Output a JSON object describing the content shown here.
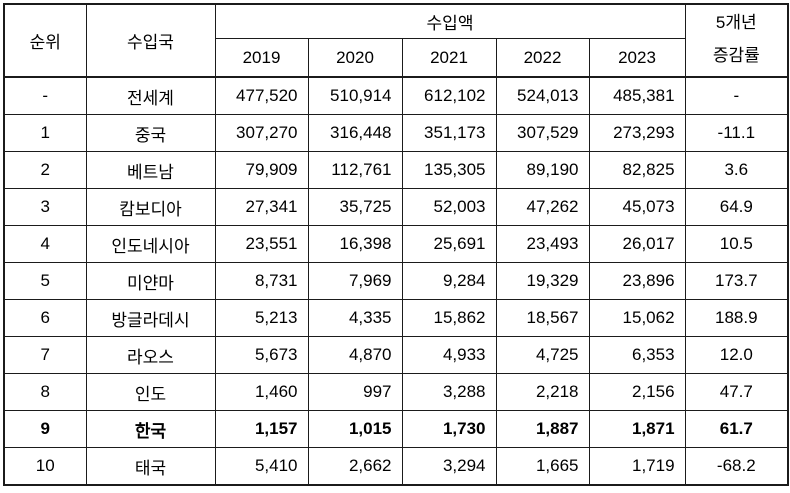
{
  "table": {
    "header": {
      "rank": "순위",
      "country": "수입국",
      "import_amount": "수입액",
      "years": [
        "2019",
        "2020",
        "2021",
        "2022",
        "2023"
      ],
      "change_rate_line1": "5개년",
      "change_rate_line2": "증감률"
    },
    "rows": [
      {
        "rank": "-",
        "country": "전세계",
        "values": [
          "477,520",
          "510,914",
          "612,102",
          "524,013",
          "485,381"
        ],
        "change": "-",
        "bold": false
      },
      {
        "rank": "1",
        "country": "중국",
        "values": [
          "307,270",
          "316,448",
          "351,173",
          "307,529",
          "273,293"
        ],
        "change": "-11.1",
        "bold": false
      },
      {
        "rank": "2",
        "country": "베트남",
        "values": [
          "79,909",
          "112,761",
          "135,305",
          "89,190",
          "82,825"
        ],
        "change": "3.6",
        "bold": false
      },
      {
        "rank": "3",
        "country": "캄보디아",
        "values": [
          "27,341",
          "35,725",
          "52,003",
          "47,262",
          "45,073"
        ],
        "change": "64.9",
        "bold": false
      },
      {
        "rank": "4",
        "country": "인도네시아",
        "values": [
          "23,551",
          "16,398",
          "25,691",
          "23,493",
          "26,017"
        ],
        "change": "10.5",
        "bold": false
      },
      {
        "rank": "5",
        "country": "미얀마",
        "values": [
          "8,731",
          "7,969",
          "9,284",
          "19,329",
          "23,896"
        ],
        "change": "173.7",
        "bold": false
      },
      {
        "rank": "6",
        "country": "방글라데시",
        "values": [
          "5,213",
          "4,335",
          "15,862",
          "18,567",
          "15,062"
        ],
        "change": "188.9",
        "bold": false
      },
      {
        "rank": "7",
        "country": "라오스",
        "values": [
          "5,673",
          "4,870",
          "4,933",
          "4,725",
          "6,353"
        ],
        "change": "12.0",
        "bold": false
      },
      {
        "rank": "8",
        "country": "인도",
        "values": [
          "1,460",
          "997",
          "3,288",
          "2,218",
          "2,156"
        ],
        "change": "47.7",
        "bold": false
      },
      {
        "rank": "9",
        "country": "한국",
        "values": [
          "1,157",
          "1,015",
          "1,730",
          "1,887",
          "1,871"
        ],
        "change": "61.7",
        "bold": true
      },
      {
        "rank": "10",
        "country": "태국",
        "values": [
          "5,410",
          "2,662",
          "3,294",
          "1,665",
          "1,719"
        ],
        "change": "-68.2",
        "bold": false
      }
    ]
  }
}
